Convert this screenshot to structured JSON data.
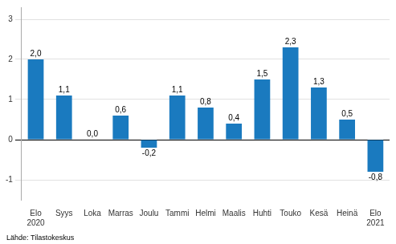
{
  "chart_data": {
    "type": "bar",
    "categories": [
      "Elo\n2020",
      "Syys",
      "Loka",
      "Marras",
      "Joulu",
      "Tammi",
      "Helmi",
      "Maalis",
      "Huhti",
      "Touko",
      "Kesä",
      "Heinä",
      "Elo\n2021"
    ],
    "values": [
      2.0,
      1.1,
      0.0,
      0.6,
      -0.2,
      1.1,
      0.8,
      0.4,
      1.5,
      2.3,
      1.3,
      0.5,
      -0.8
    ],
    "value_labels": [
      "2,0",
      "1,1",
      "0,0",
      "0,6",
      "-0,2",
      "1,1",
      "0,8",
      "0,4",
      "1,5",
      "2,3",
      "1,3",
      "0,5",
      "-0,8"
    ],
    "data_labels": true,
    "color": "#1a7abf",
    "ylim": [
      -1.5,
      3.3
    ],
    "yticks": [
      -1,
      0,
      1,
      2,
      3
    ],
    "grid": true,
    "annotations": [
      "Lähde: Tilastokeskus"
    ]
  }
}
